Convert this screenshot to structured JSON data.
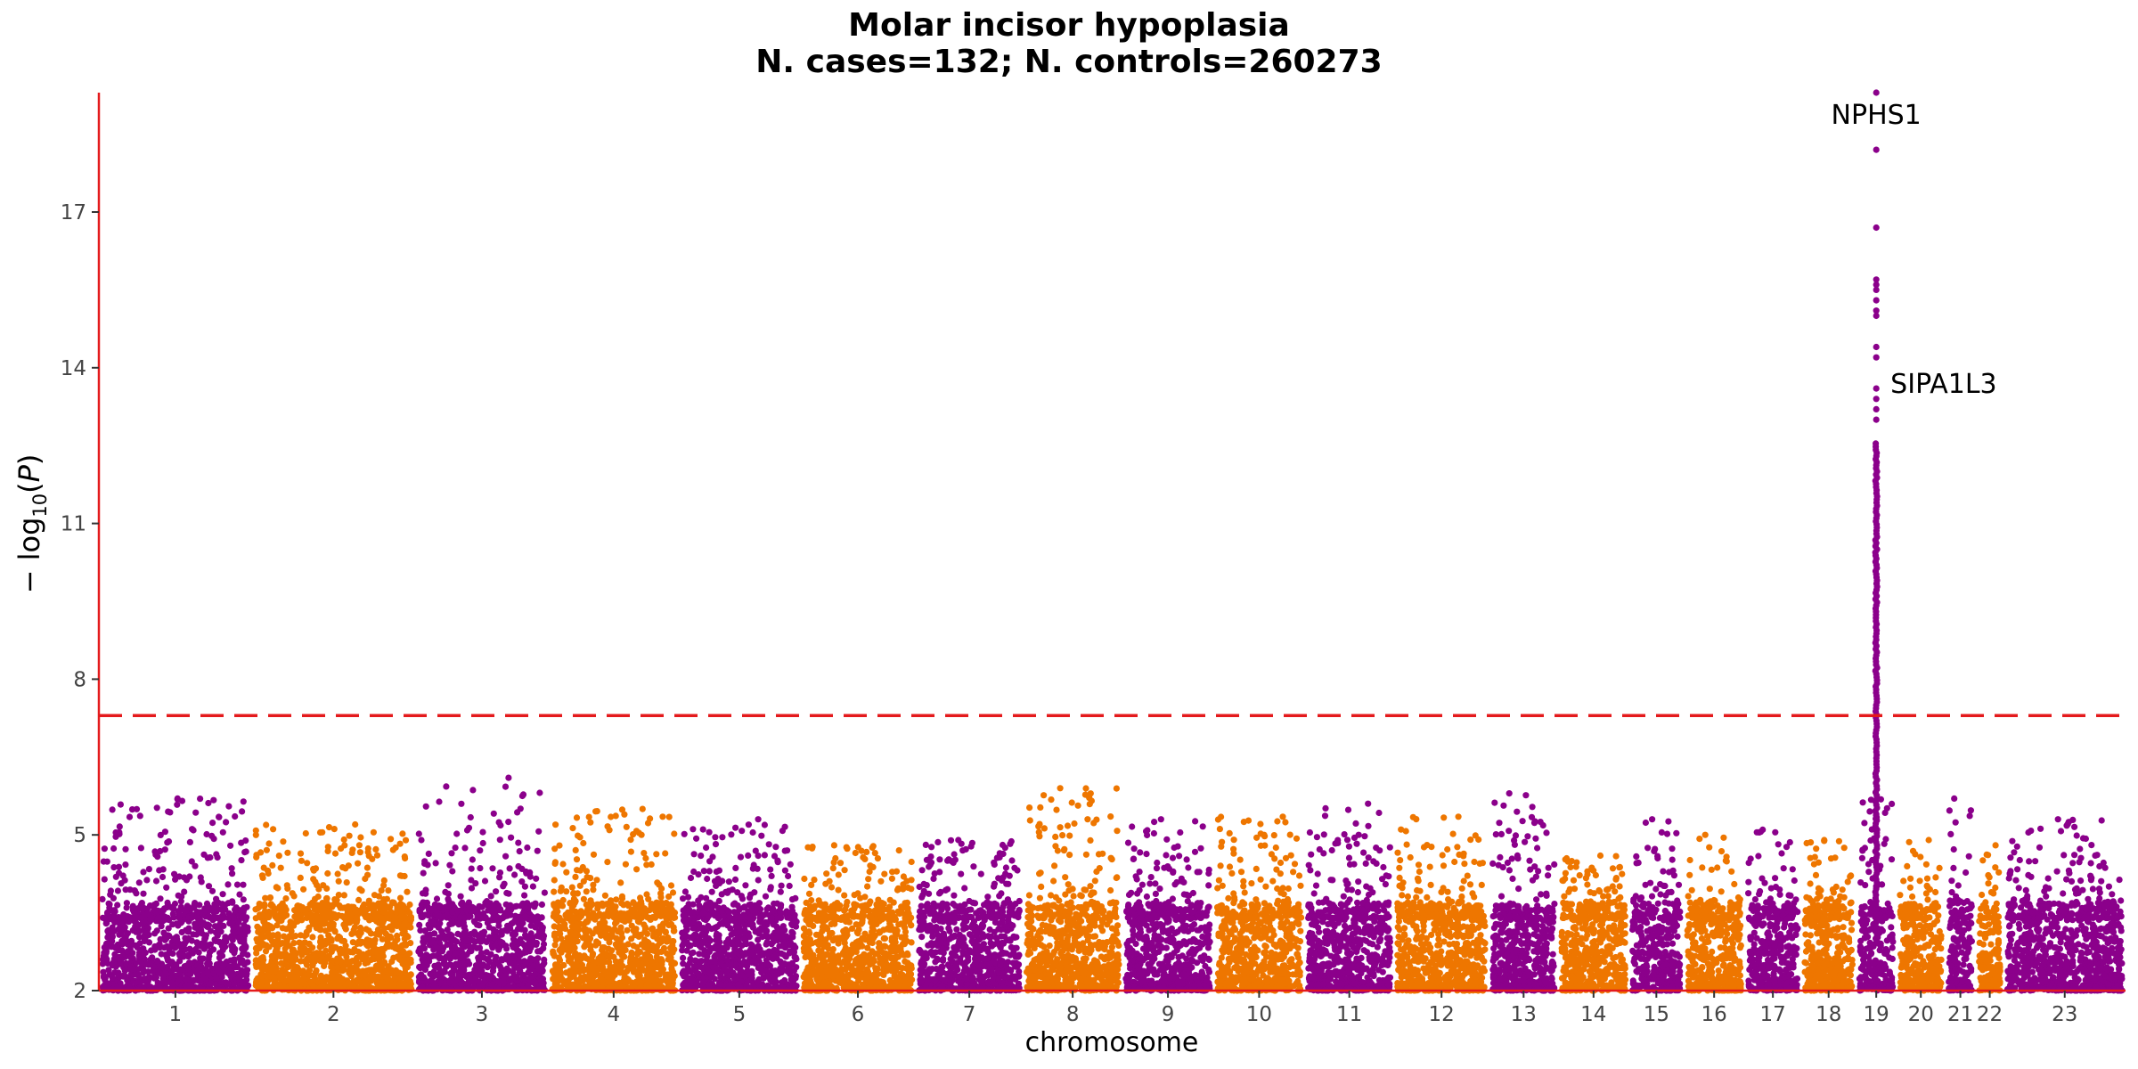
{
  "chart_data": {
    "type": "scatter",
    "subtype": "manhattan",
    "title": "Molar incisor hypoplasia",
    "subtitle": "N. cases=132; N. controls=260273",
    "xlabel": "chromosome",
    "ylabel": "-log10(P)",
    "ylim": [
      2,
      19.3
    ],
    "yticks": [
      2,
      5,
      8,
      11,
      14,
      17
    ],
    "significance_threshold": 7.3,
    "threshold_line": {
      "style": "dashed",
      "color": "#e41a1c"
    },
    "axis_line_color": "#e41a1c",
    "grid": false,
    "point_colors": [
      "#8b008b",
      "#ee7600"
    ],
    "chromosomes": [
      {
        "label": "1",
        "color": "#8b008b",
        "start": 0.0,
        "end": 7.55,
        "peak": 5.7
      },
      {
        "label": "2",
        "color": "#ee7600",
        "start": 7.55,
        "end": 15.6,
        "peak": 5.2
      },
      {
        "label": "3",
        "color": "#8b008b",
        "start": 15.6,
        "end": 22.2,
        "peak": 6.1
      },
      {
        "label": "4",
        "color": "#ee7600",
        "start": 22.2,
        "end": 28.6,
        "peak": 5.5
      },
      {
        "label": "5",
        "color": "#8b008b",
        "start": 28.6,
        "end": 34.6,
        "peak": 5.3
      },
      {
        "label": "6",
        "color": "#ee7600",
        "start": 34.6,
        "end": 40.3,
        "peak": 4.8
      },
      {
        "label": "7",
        "color": "#8b008b",
        "start": 40.3,
        "end": 45.6,
        "peak": 4.9
      },
      {
        "label": "8",
        "color": "#ee7600",
        "start": 45.6,
        "end": 50.5,
        "peak": 5.9
      },
      {
        "label": "9",
        "color": "#8b008b",
        "start": 50.5,
        "end": 55.0,
        "peak": 5.3
      },
      {
        "label": "10",
        "color": "#ee7600",
        "start": 55.0,
        "end": 59.5,
        "peak": 5.35
      },
      {
        "label": "11",
        "color": "#8b008b",
        "start": 59.5,
        "end": 63.9,
        "peak": 5.6
      },
      {
        "label": "12",
        "color": "#ee7600",
        "start": 63.9,
        "end": 68.6,
        "peak": 5.35
      },
      {
        "label": "13",
        "color": "#8b008b",
        "start": 68.6,
        "end": 72.0,
        "peak": 5.8
      },
      {
        "label": "14",
        "color": "#ee7600",
        "start": 72.0,
        "end": 75.5,
        "peak": 4.6
      },
      {
        "label": "15",
        "color": "#8b008b",
        "start": 75.5,
        "end": 78.2,
        "peak": 5.3
      },
      {
        "label": "16",
        "color": "#ee7600",
        "start": 78.2,
        "end": 81.2,
        "peak": 5.0
      },
      {
        "label": "17",
        "color": "#8b008b",
        "start": 81.2,
        "end": 84.0,
        "peak": 5.1
      },
      {
        "label": "18",
        "color": "#ee7600",
        "start": 84.0,
        "end": 86.7,
        "peak": 4.9
      },
      {
        "label": "19",
        "color": "#8b008b",
        "start": 86.7,
        "end": 88.7,
        "peak": 19.3
      },
      {
        "label": "20",
        "color": "#ee7600",
        "start": 88.7,
        "end": 91.1,
        "peak": 4.9
      },
      {
        "label": "21",
        "color": "#8b008b",
        "start": 91.1,
        "end": 92.6,
        "peak": 5.7
      },
      {
        "label": "22",
        "color": "#ee7600",
        "start": 92.6,
        "end": 94.0,
        "peak": 4.8
      },
      {
        "label": "23",
        "color": "#8b008b",
        "start": 94.0,
        "end": 100.0,
        "peak": 5.3
      }
    ],
    "annotations": [
      {
        "label": "NPHS1",
        "chromosome": "19",
        "p": 19.3
      },
      {
        "label": "SIPA1L3",
        "chromosome": "19",
        "p": 13.6
      }
    ]
  }
}
